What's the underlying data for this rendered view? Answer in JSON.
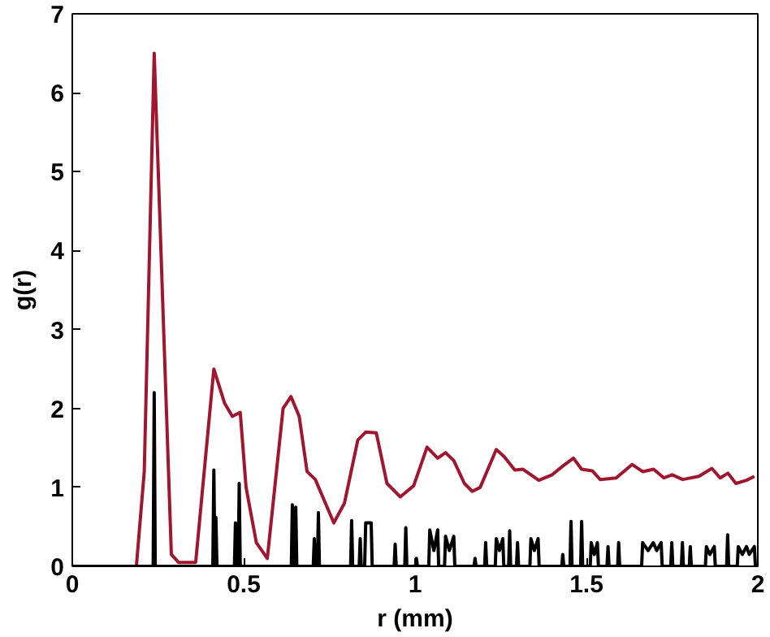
{
  "chart_data": {
    "type": "line",
    "xlabel": "r (mm)",
    "ylabel": "g(r)",
    "xlim": [
      0,
      2
    ],
    "ylim": [
      0,
      7
    ],
    "xticks": [
      0,
      0.5,
      1,
      1.5,
      2
    ],
    "yticks": [
      0,
      1,
      2,
      3,
      4,
      5,
      6,
      7
    ],
    "grid": false,
    "marker": "none",
    "line_style": "solid",
    "series": [
      {
        "color": "#a0162e",
        "x": [
          0,
          0.187,
          0.21,
          0.239,
          0.289,
          0.31,
          0.36,
          0.413,
          0.444,
          0.467,
          0.49,
          0.507,
          0.537,
          0.569,
          0.615,
          0.638,
          0.662,
          0.685,
          0.709,
          0.763,
          0.794,
          0.833,
          0.856,
          0.887,
          0.918,
          0.957,
          0.996,
          1.035,
          1.066,
          1.089,
          1.113,
          1.144,
          1.167,
          1.19,
          1.237,
          1.26,
          1.291,
          1.315,
          1.361,
          1.4,
          1.431,
          1.462,
          1.486,
          1.517,
          1.54,
          1.587,
          1.633,
          1.664,
          1.696,
          1.726,
          1.75,
          1.781,
          1.828,
          1.866,
          1.89,
          1.913,
          1.936,
          1.967,
          1.99
        ],
        "values": [
          0,
          0,
          1.2,
          6.5,
          0.15,
          0.05,
          0.05,
          2.5,
          2.07,
          1.9,
          1.95,
          1.0,
          0.3,
          0.1,
          2.0,
          2.15,
          1.9,
          1.2,
          1.1,
          0.55,
          0.8,
          1.6,
          1.7,
          1.69,
          1.05,
          0.88,
          1.02,
          1.51,
          1.37,
          1.44,
          1.34,
          1.05,
          0.95,
          1.0,
          1.48,
          1.39,
          1.22,
          1.23,
          1.09,
          1.16,
          1.27,
          1.37,
          1.23,
          1.21,
          1.1,
          1.12,
          1.29,
          1.2,
          1.23,
          1.12,
          1.16,
          1.1,
          1.14,
          1.24,
          1.12,
          1.18,
          1.05,
          1.09,
          1.14
        ]
      },
      {
        "color": "#000000",
        "x": [
          0,
          0.236,
          0.239,
          0.242,
          0.41,
          0.413,
          0.416,
          0.419,
          0.422,
          0.425,
          0.473,
          0.476,
          0.479,
          0.484,
          0.487,
          0.49,
          0.639,
          0.642,
          0.647,
          0.652,
          0.655,
          0.703,
          0.706,
          0.709,
          0.715,
          0.718,
          0.721,
          0.812,
          0.815,
          0.818,
          0.837,
          0.84,
          0.843,
          0.853,
          0.856,
          0.864,
          0.872,
          0.875,
          0.939,
          0.942,
          0.945,
          0.97,
          0.973,
          0.976,
          1.001,
          1.004,
          1.007,
          1.04,
          1.043,
          1.055,
          1.066,
          1.069,
          1.086,
          1.089,
          1.1,
          1.113,
          1.116,
          1.172,
          1.175,
          1.178,
          1.203,
          1.206,
          1.209,
          1.234,
          1.237,
          1.246,
          1.256,
          1.259,
          1.273,
          1.276,
          1.279,
          1.296,
          1.299,
          1.302,
          1.335,
          1.338,
          1.348,
          1.359,
          1.362,
          1.428,
          1.431,
          1.434,
          1.452,
          1.455,
          1.458,
          1.483,
          1.486,
          1.489,
          1.511,
          1.514,
          1.523,
          1.532,
          1.535,
          1.56,
          1.563,
          1.566,
          1.591,
          1.594,
          1.597,
          1.661,
          1.664,
          1.68,
          1.695,
          1.705,
          1.718,
          1.721,
          1.746,
          1.749,
          1.752,
          1.777,
          1.78,
          1.783,
          1.8,
          1.803,
          1.806,
          1.847,
          1.85,
          1.86,
          1.873,
          1.876,
          1.909,
          1.912,
          1.915,
          1.94,
          1.943,
          1.955,
          1.967,
          1.975,
          1.99,
          1.993
        ],
        "values": [
          0,
          0,
          2.2,
          0,
          0,
          1.22,
          0,
          0.62,
          0,
          0,
          0,
          0.55,
          0,
          0,
          1.05,
          0,
          0,
          0.78,
          0,
          0.75,
          0,
          0,
          0.35,
          0,
          0,
          0.68,
          0,
          0,
          0.58,
          0,
          0,
          0.35,
          0,
          0,
          0.55,
          0.55,
          0.55,
          0,
          0,
          0.28,
          0,
          0,
          0.49,
          0,
          0,
          0.1,
          0,
          0,
          0.46,
          0.2,
          0.46,
          0,
          0,
          0.38,
          0.2,
          0.38,
          0,
          0,
          0.1,
          0,
          0,
          0.3,
          0,
          0,
          0.35,
          0.2,
          0.35,
          0,
          0,
          0.45,
          0,
          0,
          0.3,
          0,
          0,
          0.35,
          0.2,
          0.35,
          0,
          0,
          0.15,
          0,
          0,
          0.57,
          0,
          0,
          0.57,
          0,
          0,
          0.3,
          0.15,
          0.3,
          0,
          0,
          0.25,
          0,
          0,
          0.3,
          0,
          0,
          0.3,
          0.2,
          0.3,
          0.2,
          0.3,
          0,
          0,
          0.3,
          0,
          0,
          0.3,
          0,
          0,
          0.25,
          0,
          0,
          0.25,
          0.15,
          0.25,
          0,
          0,
          0.4,
          0,
          0,
          0.25,
          0.15,
          0.25,
          0.15,
          0.25,
          0
        ]
      }
    ]
  }
}
